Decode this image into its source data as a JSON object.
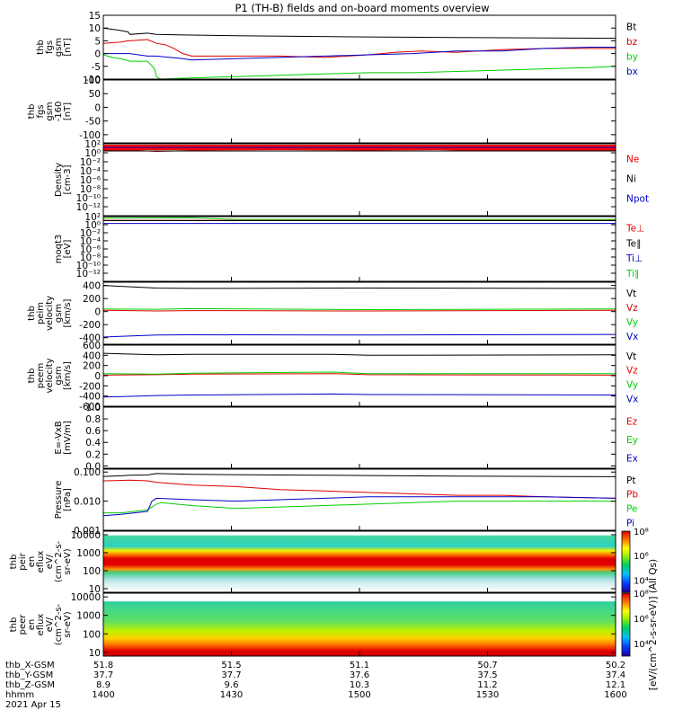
{
  "title": "P1 (TH-B) fields and on-board moments overview",
  "colors": {
    "black": "#000000",
    "red": "#e00000",
    "green": "#00d000",
    "blue": "#0000c8"
  },
  "chart_data": [
    {
      "type": "line",
      "ylabel": [
        "thb",
        "fgs",
        "gsm",
        "[nT]"
      ],
      "ylim": [
        -10,
        15
      ],
      "yticks": [
        {
          "v": 15,
          "t": "15"
        },
        {
          "v": 10,
          "t": "10"
        },
        {
          "v": 5,
          "t": "5"
        },
        {
          "v": 0,
          "t": "0"
        },
        {
          "v": -5,
          "t": "-5"
        },
        {
          "v": -10,
          "t": "-10"
        }
      ],
      "series": [
        {
          "name": "Bt",
          "color": "black",
          "x": [
            0,
            10,
            20,
            28,
            30,
            50,
            60,
            90,
            150,
            300,
            400,
            580
          ],
          "y": [
            10,
            9.5,
            9,
            8.5,
            7.5,
            8,
            7.5,
            7.3,
            7,
            6.5,
            6.3,
            6
          ]
        },
        {
          "name": "bz",
          "color": "red",
          "x": [
            0,
            20,
            28,
            30,
            50,
            60,
            70,
            80,
            90,
            100,
            150,
            200,
            250,
            300,
            330,
            360,
            400,
            450,
            500,
            580
          ],
          "y": [
            4,
            4.5,
            5,
            5,
            5.5,
            4,
            3.5,
            2,
            0,
            -1,
            -1,
            -1,
            -1.5,
            -0.5,
            0.5,
            1,
            0.5,
            1.5,
            2,
            2
          ]
        },
        {
          "name": "by",
          "color": "green",
          "x": [
            0,
            10,
            20,
            30,
            50,
            58,
            60,
            62,
            65,
            100,
            150,
            200,
            250,
            300,
            350,
            400,
            450,
            500,
            550,
            580
          ],
          "y": [
            -0.5,
            -1.5,
            -2,
            -3,
            -3,
            -6,
            -9,
            -9.5,
            -10,
            -9.5,
            -9,
            -8.5,
            -8,
            -7.5,
            -7.5,
            -7,
            -6.5,
            -6,
            -5.5,
            -5
          ]
        },
        {
          "name": "bx",
          "color": "blue",
          "x": [
            0,
            20,
            30,
            50,
            60,
            90,
            100,
            150,
            200,
            250,
            300,
            350,
            400,
            450,
            500,
            550,
            580
          ],
          "y": [
            0,
            0,
            0,
            -1,
            -1,
            -2,
            -2.5,
            -2,
            -1.5,
            -1,
            -0.5,
            0,
            1,
            1,
            2,
            2.5,
            2.5
          ]
        }
      ]
    },
    {
      "type": "line",
      "ylabel": [
        "thb",
        "fgs",
        "gsm",
        "-160",
        "[nT]"
      ],
      "ylim": [
        -130,
        100
      ],
      "yticks": [
        {
          "v": 100,
          "t": "100"
        },
        {
          "v": 50,
          "t": "50"
        },
        {
          "v": 0,
          "t": "0"
        },
        {
          "v": -50,
          "t": "-50"
        },
        {
          "v": -100,
          "t": "-100"
        }
      ],
      "series": []
    },
    {
      "type": "line",
      "ylabel": [
        "Density",
        "[cm-3]"
      ],
      "ylog": true,
      "ylim": [
        -14,
        2
      ],
      "yticks": [
        {
          "v": 2,
          "t": "10²"
        },
        {
          "v": 0,
          "t": "10⁰"
        },
        {
          "v": -2,
          "t": "10⁻²"
        },
        {
          "v": -4,
          "t": "10⁻⁴"
        },
        {
          "v": -6,
          "t": "10⁻⁶"
        },
        {
          "v": -8,
          "t": "10⁻⁸"
        },
        {
          "v": -10,
          "t": "10⁻¹⁰"
        },
        {
          "v": -12,
          "t": "10⁻¹²"
        }
      ],
      "series": [
        {
          "name": "Ne",
          "color": "red",
          "x": [
            0,
            30,
            60,
            100,
            200,
            300,
            380,
            420,
            580
          ],
          "y": [
            0.5,
            0.6,
            0.3,
            0.5,
            0.4,
            0.5,
            0.4,
            0.6,
            0.6
          ]
        },
        {
          "name": "Ni",
          "color": "black",
          "x": [
            0,
            580
          ],
          "y": [
            0.4,
            0.4
          ]
        },
        {
          "name": "Npot",
          "color": "blue",
          "x": [
            0,
            580
          ],
          "y": [
            1.2,
            1.2
          ]
        }
      ]
    },
    {
      "type": "line",
      "ylabel": [
        "moqt3",
        "[eV]"
      ],
      "ylog": true,
      "ylim": [
        -14,
        2
      ],
      "yticks": [
        {
          "v": 2,
          "t": "10²"
        },
        {
          "v": 0,
          "t": "10⁰"
        },
        {
          "v": -2,
          "t": "10⁻²"
        },
        {
          "v": -4,
          "t": "10⁻⁴"
        },
        {
          "v": -6,
          "t": "10⁻⁶"
        },
        {
          "v": -8,
          "t": "10⁻⁸"
        },
        {
          "v": -10,
          "t": "10⁻¹⁰"
        },
        {
          "v": -12,
          "t": "10⁻¹²"
        }
      ],
      "series": [
        {
          "name": "Te⊥",
          "color": "red",
          "x": [
            0,
            580
          ],
          "y": [
            1.1,
            1.1
          ]
        },
        {
          "name": "Te∥",
          "color": "black",
          "x": [
            0,
            580
          ],
          "y": [
            1,
            1
          ]
        },
        {
          "name": "Ti⊥",
          "color": "blue",
          "x": [
            0,
            580
          ],
          "y": [
            0.3,
            0.3
          ]
        },
        {
          "name": "Ti∥",
          "color": "green",
          "x": [
            0,
            100,
            150,
            580
          ],
          "y": [
            1.6,
            1.7,
            1.3,
            1.3
          ]
        }
      ]
    },
    {
      "type": "line",
      "ylabel": [
        "thb",
        "peim",
        "velocity",
        "gsm",
        "[km/s]"
      ],
      "ylim": [
        -500,
        450
      ],
      "yticks": [
        {
          "v": 400,
          "t": "400"
        },
        {
          "v": 200,
          "t": "200"
        },
        {
          "v": 0,
          "t": "0"
        },
        {
          "v": -200,
          "t": "-200"
        },
        {
          "v": -400,
          "t": "-400"
        }
      ],
      "series": [
        {
          "name": "Vt",
          "color": "black",
          "x": [
            0,
            60,
            100,
            300,
            580
          ],
          "y": [
            400,
            360,
            355,
            360,
            355
          ]
        },
        {
          "name": "Vz",
          "color": "red",
          "x": [
            0,
            60,
            100,
            300,
            580
          ],
          "y": [
            20,
            10,
            15,
            10,
            20
          ]
        },
        {
          "name": "Vy",
          "color": "green",
          "x": [
            0,
            60,
            100,
            300,
            580
          ],
          "y": [
            40,
            35,
            45,
            30,
            40
          ]
        },
        {
          "name": "Vx",
          "color": "blue",
          "x": [
            0,
            60,
            100,
            300,
            580
          ],
          "y": [
            -390,
            -360,
            -355,
            -360,
            -350
          ]
        }
      ]
    },
    {
      "type": "line",
      "ylabel": [
        "thb",
        "peem",
        "velocity",
        "gsm",
        "[km/s]"
      ],
      "ylim": [
        -600,
        600
      ],
      "yticks": [
        {
          "v": 600,
          "t": "600"
        },
        {
          "v": 400,
          "t": "400"
        },
        {
          "v": 200,
          "t": "200"
        },
        {
          "v": 0,
          "t": "0"
        },
        {
          "v": -200,
          "t": "-200"
        },
        {
          "v": -400,
          "t": "-400"
        },
        {
          "v": -600,
          "t": "-600"
        }
      ],
      "series": [
        {
          "name": "Vt",
          "color": "black",
          "x": [
            0,
            60,
            100,
            260,
            300,
            580
          ],
          "y": [
            440,
            410,
            420,
            420,
            400,
            410
          ]
        },
        {
          "name": "Vz",
          "color": "red",
          "x": [
            0,
            60,
            100,
            260,
            300,
            580
          ],
          "y": [
            10,
            20,
            30,
            40,
            20,
            10
          ]
        },
        {
          "name": "Vy",
          "color": "green",
          "x": [
            0,
            60,
            100,
            260,
            300,
            580
          ],
          "y": [
            40,
            30,
            50,
            70,
            40,
            40
          ]
        },
        {
          "name": "Vx",
          "color": "blue",
          "x": [
            0,
            60,
            100,
            260,
            300,
            580
          ],
          "y": [
            -420,
            -390,
            -380,
            -360,
            -370,
            -380
          ]
        }
      ]
    },
    {
      "type": "line",
      "ylabel": [
        "E=-VxB",
        "[mV/m]"
      ],
      "ylim": [
        -0.04,
        1.0
      ],
      "yticks": [
        {
          "v": 1.0,
          "t": "1.0"
        },
        {
          "v": 0.8,
          "t": "0.8"
        },
        {
          "v": 0.6,
          "t": "0.6"
        },
        {
          "v": 0.4,
          "t": "0.4"
        },
        {
          "v": 0.2,
          "t": "0.2"
        },
        {
          "v": 0.0,
          "t": "0.0"
        }
      ],
      "series": [
        {
          "name": "Ez",
          "color": "red",
          "x": [],
          "y": []
        },
        {
          "name": "Ey",
          "color": "green",
          "x": [],
          "y": []
        },
        {
          "name": "Ex",
          "color": "blue",
          "x": [],
          "y": []
        }
      ]
    },
    {
      "type": "line",
      "ylabel": [
        "Pressure",
        "[nPa]"
      ],
      "ylog": true,
      "ylim": [
        -3,
        -0.9
      ],
      "yticks": [
        {
          "v": -1,
          "t": "0.100"
        },
        {
          "v": -2,
          "t": "0.010"
        },
        {
          "v": -3,
          "t": "0.001"
        }
      ],
      "series": [
        {
          "name": "Pt",
          "color": "black",
          "x": [
            0,
            20,
            30,
            50,
            60,
            100,
            200,
            300,
            400,
            500,
            580
          ],
          "y": [
            -1.15,
            -1.13,
            -1.11,
            -1.1,
            -1.05,
            -1.08,
            -1.1,
            -1.12,
            -1.14,
            -1.15,
            -1.16
          ]
        },
        {
          "name": "Pb",
          "color": "red",
          "x": [
            0,
            30,
            50,
            60,
            80,
            100,
            150,
            200,
            250,
            300,
            350,
            400,
            450,
            500,
            580
          ],
          "y": [
            -1.3,
            -1.28,
            -1.3,
            -1.35,
            -1.4,
            -1.45,
            -1.5,
            -1.6,
            -1.65,
            -1.7,
            -1.75,
            -1.8,
            -1.8,
            -1.85,
            -1.9
          ]
        },
        {
          "name": "Pe",
          "color": "green",
          "x": [
            0,
            20,
            50,
            60,
            65,
            100,
            150,
            200,
            250,
            300,
            350,
            400,
            450,
            500,
            550,
            580
          ],
          "y": [
            -2.4,
            -2.4,
            -2.3,
            -2.1,
            -2.05,
            -2.15,
            -2.25,
            -2.2,
            -2.15,
            -2.1,
            -2.05,
            -2.0,
            -2.0,
            -2.0,
            -2.0,
            -2.0
          ]
        },
        {
          "name": "Pi",
          "color": "blue",
          "x": [
            0,
            20,
            50,
            55,
            60,
            100,
            150,
            200,
            250,
            300,
            350,
            400,
            450,
            500,
            580
          ],
          "y": [
            -2.5,
            -2.45,
            -2.35,
            -2.0,
            -1.9,
            -1.95,
            -2.0,
            -1.95,
            -1.9,
            -1.85,
            -1.85,
            -1.85,
            -1.85,
            -1.85,
            -1.9
          ]
        }
      ]
    },
    {
      "type": "heatmap",
      "ylabel": [
        "thb",
        "peir",
        "en",
        "eflux",
        "eV/",
        "(cm^2-s-",
        "sr-eV)"
      ],
      "ylog": true,
      "ylim": [
        0.8,
        4.2
      ],
      "yticks": [
        {
          "v": 4,
          "t": "10000"
        },
        {
          "v": 3,
          "t": "1000"
        },
        {
          "v": 2,
          "t": "100"
        },
        {
          "v": 1,
          "t": "10"
        }
      ],
      "colorbar": {
        "min": 3,
        "max": 8,
        "ticks": [
          {
            "v": 8,
            "t": "10⁸"
          },
          {
            "v": 6,
            "t": "10⁶"
          },
          {
            "v": 4,
            "t": "10⁴"
          }
        ]
      }
    },
    {
      "type": "heatmap",
      "ylabel": [
        "thb",
        "peer",
        "en",
        "eflux",
        "eV/",
        "(cm^2-s-",
        "sr-eV)"
      ],
      "ylog": true,
      "ylim": [
        0.8,
        4.2
      ],
      "yticks": [
        {
          "v": 4,
          "t": "10000"
        },
        {
          "v": 3,
          "t": "1000"
        },
        {
          "v": 2,
          "t": "100"
        },
        {
          "v": 1,
          "t": "10"
        }
      ],
      "colorbar": {
        "min": 3,
        "max": 8,
        "ticks": [
          {
            "v": 8,
            "t": "10⁸"
          },
          {
            "v": 6,
            "t": "10⁶"
          },
          {
            "v": 4,
            "t": "10⁴"
          }
        ]
      }
    }
  ],
  "colorbar_label": "[eV/(cm^2-s-sr-eV)] (All Qs)",
  "xaxis": {
    "row_labels": [
      "thb_X-GSM",
      "thb_Y-GSM",
      "thb_Z-GSM",
      "hhmm",
      "2021 Apr 15"
    ],
    "ticks": [
      {
        "rows": [
          "51.8",
          "37.7",
          "8.9",
          "1400"
        ]
      },
      {
        "rows": [
          "51.5",
          "37.7",
          "9.6",
          "1430"
        ]
      },
      {
        "rows": [
          "51.1",
          "37.6",
          "10.3",
          "1500"
        ]
      },
      {
        "rows": [
          "50.7",
          "37.5",
          "11.2",
          "1530"
        ]
      },
      {
        "rows": [
          "50.2",
          "37.4",
          "12.1",
          "1600"
        ]
      }
    ]
  }
}
